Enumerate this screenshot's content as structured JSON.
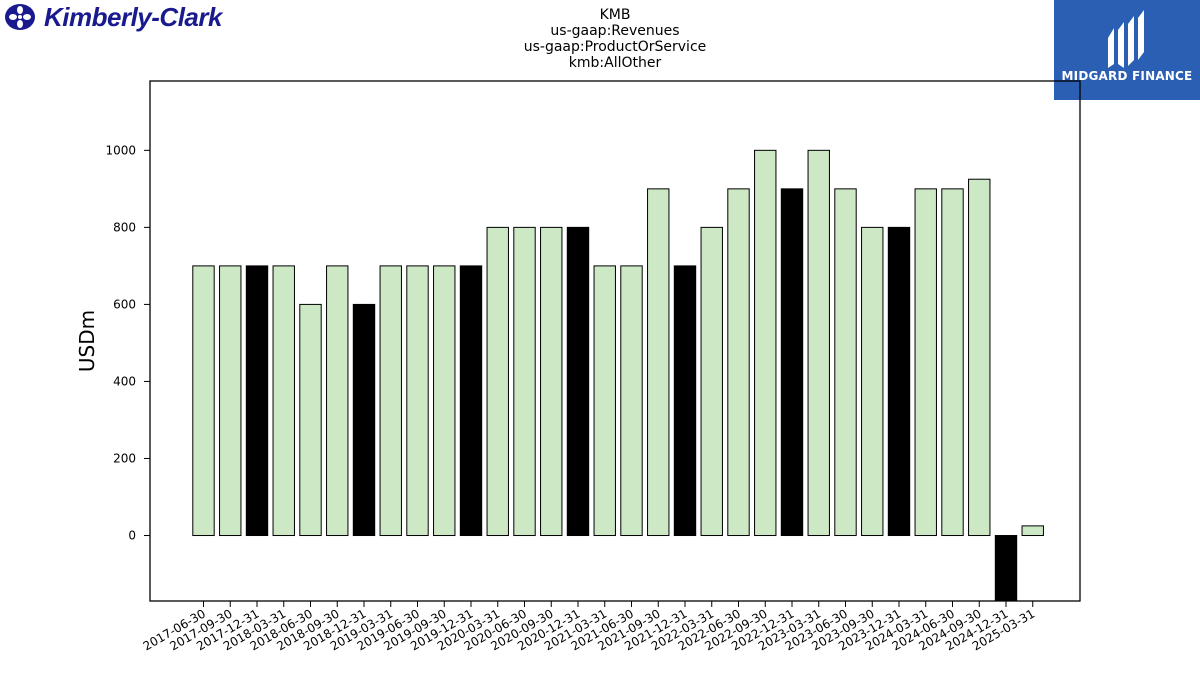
{
  "logos": {
    "left": {
      "name": "Kimberly-Clark",
      "color": "#1a1a8f"
    },
    "right": {
      "name": "MIDGARD FINANCE",
      "background": "#2b5fb4"
    }
  },
  "chart_data": {
    "type": "bar",
    "title_lines": [
      "KMB",
      "us-gaap:Revenues",
      "us-gaap:ProductOrService",
      "kmb:AllOther"
    ],
    "xlabel": "",
    "ylabel": "USDm",
    "ylim": [
      -170,
      1180
    ],
    "yticks": [
      0,
      200,
      400,
      600,
      800,
      1000
    ],
    "grid": false,
    "colors": {
      "default": "#cde8c5",
      "highlight": "#000000",
      "edge": "#000000"
    },
    "categories": [
      "2017-06-30",
      "2017-09-30",
      "2017-12-31",
      "2018-03-31",
      "2018-06-30",
      "2018-09-30",
      "2018-12-31",
      "2019-03-31",
      "2019-06-30",
      "2019-09-30",
      "2019-12-31",
      "2020-03-31",
      "2020-06-30",
      "2020-09-30",
      "2020-12-31",
      "2021-03-31",
      "2021-06-30",
      "2021-09-30",
      "2021-12-31",
      "2022-03-31",
      "2022-06-30",
      "2022-09-30",
      "2022-12-31",
      "2023-03-31",
      "2023-06-30",
      "2023-09-30",
      "2023-12-31",
      "2024-03-31",
      "2024-06-30",
      "2024-09-30",
      "2024-12-31",
      "2025-03-31"
    ],
    "values": [
      700,
      700,
      700,
      700,
      600,
      700,
      600,
      700,
      700,
      700,
      700,
      800,
      800,
      800,
      800,
      700,
      700,
      900,
      700,
      800,
      900,
      1000,
      900,
      1000,
      900,
      800,
      800,
      900,
      900,
      925,
      -170,
      25
    ],
    "highlighted": [
      false,
      false,
      true,
      false,
      false,
      false,
      true,
      false,
      false,
      false,
      true,
      false,
      false,
      false,
      true,
      false,
      false,
      false,
      true,
      false,
      false,
      false,
      true,
      false,
      false,
      false,
      true,
      false,
      false,
      false,
      true,
      false
    ]
  }
}
